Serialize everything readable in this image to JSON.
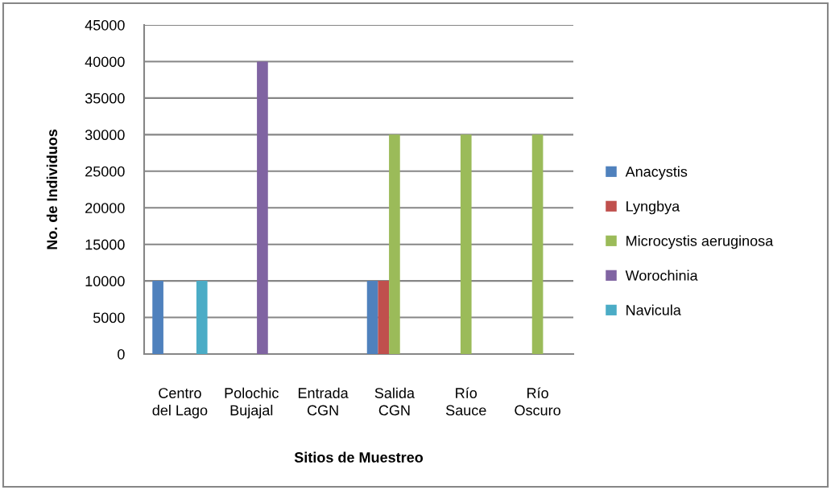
{
  "chart_data": {
    "type": "bar",
    "xlabel": "Sitios de Muestreo",
    "ylabel": "No. de Individuos",
    "categories": [
      "Centro del Lago",
      "Polochic Bujajal",
      "Entrada CGN",
      "Salida CGN",
      "Río Sauce",
      "Río Oscuro"
    ],
    "series": [
      {
        "name": "Anacystis",
        "color": "#4f81bd",
        "values": [
          10000,
          null,
          null,
          10000,
          null,
          null
        ]
      },
      {
        "name": "Lyngbya",
        "color": "#c0504d",
        "values": [
          null,
          null,
          null,
          10000,
          null,
          null
        ]
      },
      {
        "name": "Microcystis aeruginosa",
        "color": "#9bbb59",
        "values": [
          null,
          null,
          null,
          30000,
          30000,
          30000
        ]
      },
      {
        "name": "Worochinia",
        "color": "#8064a2",
        "values": [
          null,
          40000,
          null,
          null,
          null,
          null
        ]
      },
      {
        "name": "Navicula",
        "color": "#4bacc6",
        "values": [
          10000,
          null,
          null,
          null,
          null,
          null
        ]
      }
    ],
    "ylim": [
      0,
      45000
    ],
    "yticks": [
      0,
      5000,
      10000,
      15000,
      20000,
      25000,
      30000,
      35000,
      40000,
      45000
    ],
    "grid": "y",
    "legend": "right"
  }
}
